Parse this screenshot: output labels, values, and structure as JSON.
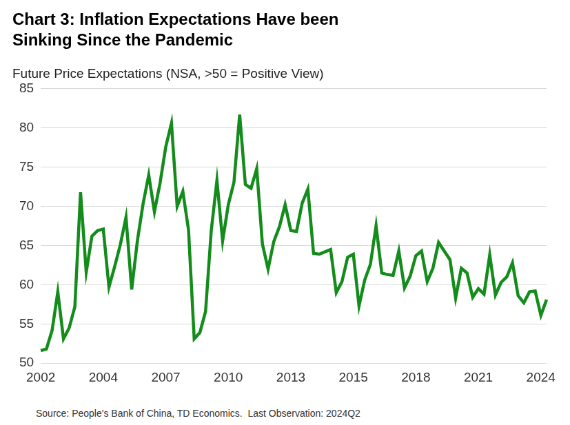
{
  "chart_data": {
    "type": "line",
    "title": [
      "Chart 3: Inflation Expectations Have been",
      "Sinking Since the Pandemic"
    ],
    "y_label": "Future Price Expectations (NSA, >50 = Positive View)",
    "source": "Source: People's Bank of China, TD Economics.  Last Observation: 2024Q2",
    "categories": [
      "2002",
      null,
      null,
      null,
      null,
      null,
      null,
      null,
      null,
      null,
      null,
      "2004",
      null,
      null,
      null,
      null,
      null,
      null,
      null,
      null,
      null,
      null,
      "2007",
      null,
      null,
      null,
      null,
      null,
      null,
      null,
      null,
      null,
      null,
      "2010",
      null,
      null,
      null,
      null,
      null,
      null,
      null,
      null,
      null,
      null,
      "2013",
      null,
      null,
      null,
      null,
      null,
      null,
      null,
      null,
      null,
      null,
      "2015",
      null,
      null,
      null,
      null,
      null,
      null,
      null,
      null,
      null,
      null,
      "2018",
      null,
      null,
      null,
      null,
      null,
      null,
      null,
      null,
      null,
      null,
      "2021",
      null,
      null,
      null,
      null,
      null,
      null,
      null,
      null,
      null,
      null,
      "2024",
      null
    ],
    "values": [
      51.6,
      51.8,
      54.2,
      59.1,
      53.1,
      54.5,
      57.2,
      71.8,
      61.6,
      66.2,
      66.9,
      67.1,
      59.7,
      62.3,
      65.1,
      68.6,
      59.4,
      65.6,
      70.3,
      74.0,
      69.3,
      73.0,
      77.6,
      80.6,
      70.0,
      71.9,
      67.0,
      53.1,
      53.9,
      56.6,
      66.9,
      73.3,
      65.6,
      70.2,
      73.1,
      81.7,
      72.8,
      72.3,
      74.8,
      65.2,
      62.0,
      65.5,
      67.4,
      70.2,
      66.9,
      66.8,
      70.4,
      72.2,
      64.0,
      63.9,
      64.2,
      64.5,
      59.0,
      60.4,
      63.5,
      63.9,
      57.3,
      60.6,
      62.6,
      67.5,
      61.5,
      61.3,
      61.2,
      64.3,
      59.6,
      61.1,
      63.7,
      64.3,
      60.4,
      62.1,
      65.4,
      64.3,
      63.2,
      58.3,
      62.1,
      61.5,
      58.4,
      59.5,
      58.8,
      63.8,
      58.7,
      60.3,
      61.0,
      62.8,
      58.6,
      57.7,
      59.1,
      59.2,
      56.1,
      58.1
    ],
    "color": "#148c1c",
    "ylim": [
      50,
      85
    ],
    "yticks": [
      50,
      55,
      60,
      65,
      70,
      75,
      80,
      85
    ],
    "grid": true
  }
}
